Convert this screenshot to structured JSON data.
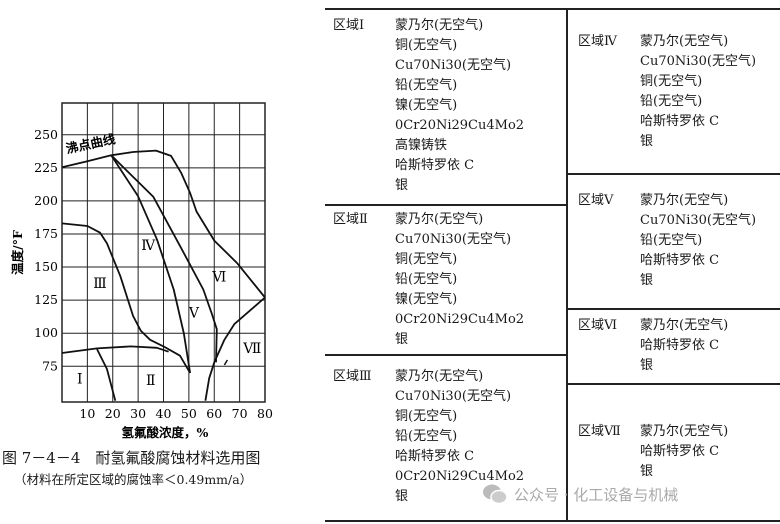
{
  "figure": {
    "caption": "图 7－4－4　耐氢氟酸腐蚀材料选用图",
    "note": "（材料在所定区域的腐蚀率＜0.49mm/a）"
  },
  "chart_data": {
    "type": "line",
    "xlabel": "氢氟酸浓度，%",
    "ylabel": "温度/°F",
    "xlim": [
      0,
      80
    ],
    "ylim": [
      48,
      274
    ],
    "xticks": [
      10,
      20,
      30,
      40,
      50,
      60,
      70,
      80
    ],
    "yticks": [
      75,
      100,
      125,
      150,
      175,
      200,
      225,
      250
    ],
    "grid": true,
    "annotation": "沸点曲线",
    "region_labels": [
      {
        "text": "Ⅰ",
        "x": 7,
        "y": 62
      },
      {
        "text": "Ⅱ",
        "x": 35,
        "y": 61
      },
      {
        "text": "Ⅲ",
        "x": 15,
        "y": 134
      },
      {
        "text": "Ⅳ",
        "x": 34,
        "y": 163
      },
      {
        "text": "Ⅴ",
        "x": 52,
        "y": 112
      },
      {
        "text": "Ⅵ",
        "x": 62,
        "y": 139
      },
      {
        "text": "Ⅶ",
        "x": 75,
        "y": 85
      }
    ],
    "curves": [
      [
        [
          0,
          225.5
        ],
        [
          10,
          230
        ],
        [
          19.4,
          234.5
        ],
        [
          28,
          237
        ],
        [
          37,
          238
        ],
        [
          43,
          234
        ],
        [
          47,
          221
        ],
        [
          50.5,
          206
        ],
        [
          53,
          192
        ],
        [
          60,
          170
        ],
        [
          69,
          153
        ],
        [
          80,
          127
        ]
      ],
      [
        [
          19.4,
          234.5
        ],
        [
          30,
          203.5
        ],
        [
          37.4,
          171
        ],
        [
          44,
          133
        ],
        [
          48,
          100
        ],
        [
          50.5,
          70
        ]
      ],
      [
        [
          19.4,
          234.5
        ],
        [
          36,
          203
        ],
        [
          46.5,
          166
        ],
        [
          55.7,
          133
        ],
        [
          59,
          115
        ],
        [
          61,
          103
        ],
        [
          60.7,
          78
        ]
      ],
      [
        [
          0,
          183
        ],
        [
          10,
          181
        ],
        [
          15,
          176
        ],
        [
          17.7,
          168
        ],
        [
          23,
          143
        ],
        [
          26,
          125
        ],
        [
          28,
          113
        ],
        [
          31,
          102
        ],
        [
          34.7,
          95
        ],
        [
          40,
          90
        ],
        [
          46.5,
          83
        ],
        [
          50.5,
          70
        ]
      ],
      [
        [
          0,
          85
        ],
        [
          13.8,
          88.5
        ],
        [
          27,
          90
        ],
        [
          37.4,
          89
        ],
        [
          42,
          86
        ]
      ],
      [
        [
          13.8,
          88
        ],
        [
          17.7,
          73
        ],
        [
          21,
          49
        ]
      ],
      [
        [
          56.5,
          49
        ],
        [
          58,
          66
        ],
        [
          60,
          78
        ],
        [
          64,
          95
        ],
        [
          68,
          107
        ],
        [
          80,
          127
        ]
      ]
    ]
  },
  "table": {
    "left": [
      {
        "zone": "区域Ⅰ",
        "items": [
          "蒙乃尔(无空气)",
          "铜(无空气)",
          "Cu70Ni30(无空气)",
          "铅(无空气)",
          "镍(无空气)",
          "0Cr20Ni29Cu4Mo2",
          "高镍铸铁",
          "哈斯特罗依 C",
          "银"
        ]
      },
      {
        "zone": "区域Ⅱ",
        "items": [
          "蒙乃尔(无空气)",
          "Cu70Ni30(无空气)",
          "铜(无空气)",
          "铅(无空气)",
          "镍(无空气)",
          "0Cr20Ni29Cu4Mo2",
          "银"
        ]
      },
      {
        "zone": "区域Ⅲ",
        "items": [
          "蒙乃尔(无空气)",
          "Cu70Ni30(无空气)",
          "铜(无空气)",
          "铅(无空气)",
          "哈斯特罗依 C",
          "0Cr20Ni29Cu4Mo2",
          "银"
        ]
      }
    ],
    "right": [
      {
        "zone": "区域Ⅳ",
        "items": [
          "蒙乃尔(无空气)",
          "Cu70Ni30(无空气)",
          "铜(无空气)",
          "铅(无空气)",
          "哈斯特罗依 C",
          "银"
        ]
      },
      {
        "zone": "区域Ⅴ",
        "items": [
          "蒙乃尔(无空气)",
          "Cu70Ni30(无空气)",
          "铅(无空气)",
          "哈斯特罗依 C",
          "银"
        ]
      },
      {
        "zone": "区域Ⅵ",
        "items": [
          "蒙乃尔(无空气)",
          "哈斯特罗依 C",
          "银"
        ]
      },
      {
        "zone": "区域Ⅶ",
        "items": [
          "蒙乃尔(无空气)",
          "哈斯特罗依 C",
          "银"
        ]
      }
    ]
  },
  "watermark": {
    "text": "公众号 · 化工设备与机械",
    "icon": "wechat-icon"
  }
}
